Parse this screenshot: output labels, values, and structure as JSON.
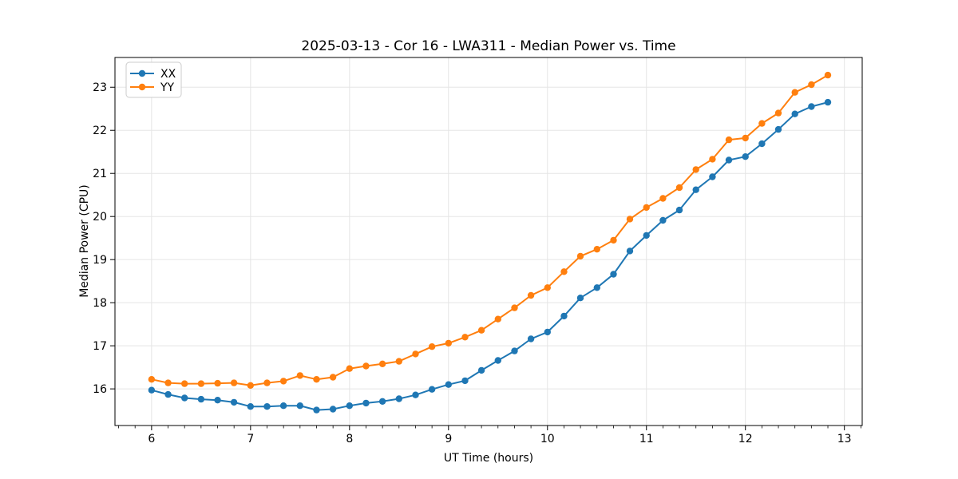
{
  "figure": {
    "background": "#ffffff",
    "spine_color": "#000000",
    "grid_color": "#e5e5e5"
  },
  "chart_data": {
    "type": "line",
    "title": "2025-03-13 - Cor 16 - LWA311 - Median Power vs. Time",
    "xlabel": "UT Time (hours)",
    "ylabel": "Median Power (CPU)",
    "xlim": [
      5.63,
      13.18
    ],
    "ylim": [
      15.15,
      23.69
    ],
    "xticks": [
      6,
      7,
      8,
      9,
      10,
      11,
      12,
      13
    ],
    "yticks": [
      16,
      17,
      18,
      19,
      20,
      21,
      22,
      23
    ],
    "x_minor_tick_step": 0.1666667,
    "grid": true,
    "legend": {
      "position": "upper-left",
      "entries": [
        {
          "label": "XX",
          "color": "#1f77b4"
        },
        {
          "label": "YY",
          "color": "#ff7f0e"
        }
      ]
    },
    "x": [
      6.0,
      6.167,
      6.333,
      6.5,
      6.667,
      6.833,
      7.0,
      7.167,
      7.333,
      7.5,
      7.667,
      7.833,
      8.0,
      8.167,
      8.333,
      8.5,
      8.667,
      8.833,
      9.0,
      9.167,
      9.333,
      9.5,
      9.667,
      9.833,
      10.0,
      10.167,
      10.333,
      10.5,
      10.667,
      10.833,
      11.0,
      11.167,
      11.333,
      11.5,
      11.667,
      11.833,
      12.0,
      12.167,
      12.333,
      12.5,
      12.667,
      12.833
    ],
    "series": [
      {
        "name": "XX",
        "color": "#1f77b4",
        "values": [
          15.97,
          15.87,
          15.79,
          15.76,
          15.74,
          15.69,
          15.59,
          15.59,
          15.61,
          15.61,
          15.51,
          15.53,
          15.61,
          15.67,
          15.71,
          15.77,
          15.86,
          15.99,
          16.1,
          16.19,
          16.43,
          16.66,
          16.88,
          17.16,
          17.32,
          17.69,
          18.11,
          18.35,
          18.66,
          19.2,
          19.56,
          19.91,
          20.15,
          20.62,
          20.92,
          21.31,
          21.39,
          21.69,
          22.02,
          22.38,
          22.55,
          22.65
        ]
      },
      {
        "name": "YY",
        "color": "#ff7f0e",
        "values": [
          16.22,
          16.14,
          16.12,
          16.12,
          16.13,
          16.14,
          16.08,
          16.14,
          16.18,
          16.31,
          16.22,
          16.27,
          16.47,
          16.53,
          16.58,
          16.64,
          16.81,
          16.98,
          17.06,
          17.2,
          17.36,
          17.62,
          17.88,
          18.17,
          18.35,
          18.72,
          19.08,
          19.24,
          19.45,
          19.94,
          20.21,
          20.42,
          20.67,
          21.09,
          21.33,
          21.78,
          21.82,
          22.16,
          22.4,
          22.88,
          23.06,
          23.28
        ]
      }
    ]
  }
}
